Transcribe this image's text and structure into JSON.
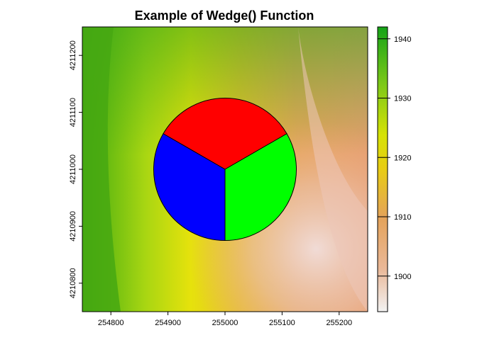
{
  "chart_data": {
    "type": "heatmap",
    "title": "Example of Wedge() Function",
    "xlabel": "",
    "ylabel": "",
    "xlim": [
      254750,
      255250
    ],
    "ylim": [
      4210750,
      4211250
    ],
    "x_ticks": [
      "254800",
      "254900",
      "255000",
      "255100",
      "255200"
    ],
    "y_ticks": [
      "4210800",
      "4210900",
      "4211000",
      "4211100",
      "4211200"
    ],
    "raster": {
      "value_range": [
        1894,
        1942
      ],
      "colormap": "terrain",
      "description_free": true
    },
    "legend": {
      "placement": "right",
      "ticks": [
        "1900",
        "1910",
        "1920",
        "1930",
        "1940"
      ],
      "tick_values": [
        1900,
        1910,
        1920,
        1930,
        1940
      ],
      "range": [
        1894,
        1942
      ]
    },
    "wedge": {
      "center": [
        255000,
        4211000
      ],
      "radius": 125,
      "segments": [
        {
          "start_deg": 30,
          "end_deg": 150,
          "color": "#ff0000"
        },
        {
          "start_deg": 150,
          "end_deg": 270,
          "color": "#0000ff"
        },
        {
          "start_deg": 270,
          "end_deg": 390,
          "color": "#00ff00"
        }
      ]
    }
  }
}
